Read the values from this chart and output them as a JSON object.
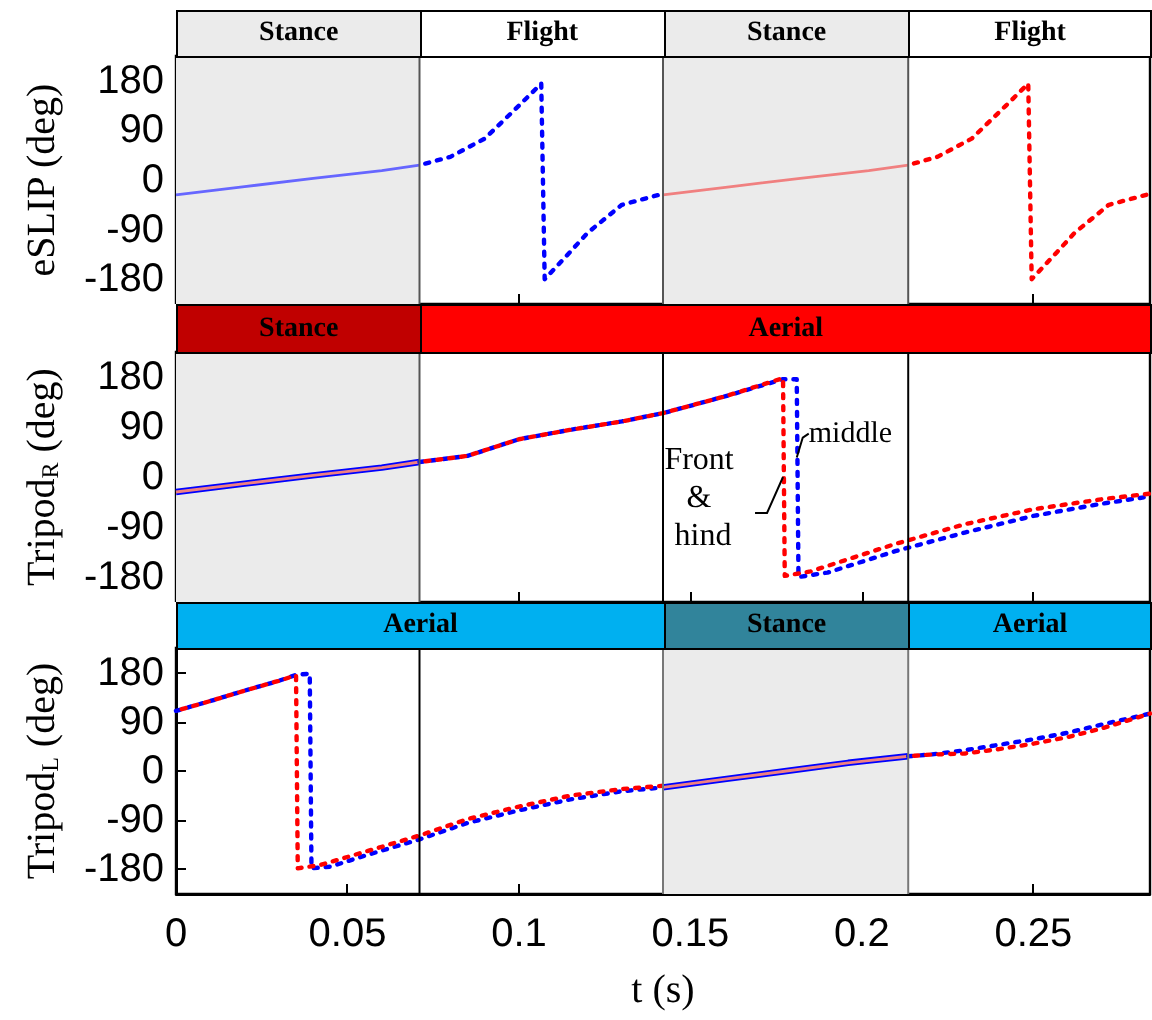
{
  "chart_data": [
    {
      "type": "line",
      "ylabel": "eSLIP (deg)",
      "xlim": [
        0,
        0.284
      ],
      "xticks": [
        0,
        0.05,
        0.1,
        0.15,
        0.2,
        0.25
      ],
      "ylim": [
        -225,
        225
      ],
      "yticks": [
        -180,
        -90,
        0,
        90,
        180
      ],
      "tick_labels": "y",
      "grid": false,
      "bands": [
        {
          "axis": "x",
          "from": 0,
          "to": 0.071,
          "label": "Stance",
          "color": "#ebebeb"
        },
        {
          "axis": "x",
          "from": 0.142,
          "to": 0.2135,
          "label": "Stance",
          "color": "#ebebeb"
        }
      ],
      "annotations": [
        "Flight",
        "Flight"
      ],
      "ref_lines": [
        {
          "axis": "x",
          "value": 0.071,
          "color": "#555555"
        },
        {
          "axis": "x",
          "value": 0.142,
          "color": "#555555"
        },
        {
          "axis": "x",
          "value": 0.2135,
          "color": "#555555"
        }
      ],
      "series": [
        {
          "color": "#6666ff",
          "line_style": "solid",
          "x": [
            0,
            0.02,
            0.04,
            0.06,
            0.071
          ],
          "values": [
            -27,
            -12,
            3,
            17,
            27
          ]
        },
        {
          "color": "#0000ff",
          "line_style": "dotted",
          "x": [
            0.071,
            0.08,
            0.09,
            0.1,
            0.1065,
            0.1075,
            0.115,
            0.12,
            0.13,
            0.142
          ],
          "values": [
            27,
            42,
            75,
            135,
            175,
            -180,
            -130,
            -96,
            -45,
            -25
          ]
        },
        {
          "color": "#f08080",
          "line_style": "solid",
          "x": [
            0.142,
            0.162,
            0.182,
            0.202,
            0.2135
          ],
          "values": [
            -27,
            -12,
            3,
            17,
            27
          ]
        },
        {
          "color": "#ff0000",
          "line_style": "dotted",
          "x": [
            0.2135,
            0.222,
            0.232,
            0.242,
            0.2485,
            0.2495,
            0.257,
            0.262,
            0.272,
            0.284
          ],
          "values": [
            27,
            42,
            75,
            135,
            175,
            -180,
            -130,
            -96,
            -45,
            -25
          ]
        }
      ]
    },
    {
      "type": "line",
      "ylabel": "Tripod$_{R}$ (deg)",
      "xlim": [
        0,
        0.284
      ],
      "xticks": [
        0,
        0.05,
        0.1,
        0.15,
        0.2,
        0.25
      ],
      "ylim": [
        -225,
        225
      ],
      "yticks": [
        -180,
        -90,
        0,
        90,
        180
      ],
      "tick_labels": "y",
      "grid": false,
      "bands": [
        {
          "axis": "x",
          "from": 0,
          "to": 0.071,
          "label": "Stance",
          "color": "#ebebeb"
        }
      ],
      "ref_lines": [
        {
          "axis": "x",
          "value": 0.071,
          "color": "#555555"
        },
        {
          "axis": "x",
          "value": 0.142,
          "color": "#000000"
        },
        {
          "axis": "x",
          "value": 0.2135,
          "color": "#000000"
        }
      ],
      "annotations": [
        "Aerial",
        {
          "text": "Front & hind",
          "x": 0.177,
          "y": 0
        },
        {
          "text": "middle",
          "x": 0.181,
          "y": 35
        }
      ],
      "series": [
        {
          "color": "#0000ff",
          "line_style": "solid",
          "x": [
            0,
            0.02,
            0.04,
            0.06,
            0.071
          ],
          "values": [
            -27,
            -12,
            3,
            17,
            27
          ]
        },
        {
          "color": "#f08080",
          "line_style": "solid",
          "x": [
            0,
            0.02,
            0.04,
            0.06,
            0.071
          ],
          "values": [
            -27,
            -12,
            3,
            17,
            27
          ]
        },
        {
          "color": "#0000ff",
          "line_style": "dotted",
          "x": [
            0.071,
            0.085,
            0.1,
            0.115,
            0.13,
            0.142,
            0.16,
            0.177,
            0.181,
            0.1815,
            0.19,
            0.21,
            0.23,
            0.25,
            0.27,
            0.284
          ],
          "values": [
            27,
            38,
            68,
            85,
            100,
            115,
            145,
            176,
            176,
            -180,
            -172,
            -133,
            -100,
            -70,
            -48,
            -35
          ]
        },
        {
          "color": "#ff0000",
          "line_style": "dotted",
          "x": [
            0.071,
            0.085,
            0.1,
            0.115,
            0.13,
            0.142,
            0.16,
            0.177,
            0.1775,
            0.185,
            0.21,
            0.23,
            0.25,
            0.27,
            0.284
          ],
          "values": [
            27,
            38,
            68,
            85,
            100,
            115,
            145,
            178,
            -178,
            -170,
            -120,
            -85,
            -58,
            -40,
            -30
          ]
        }
      ]
    },
    {
      "type": "line",
      "ylabel": "Tripod$_{L}$ (deg)",
      "xlabel": "t (s)",
      "xlim": [
        0,
        0.284
      ],
      "xticks": [
        0,
        0.05,
        0.1,
        0.15,
        0.2,
        0.25
      ],
      "ylim": [
        -225,
        225
      ],
      "yticks": [
        -180,
        -90,
        0,
        90,
        180
      ],
      "grid": false,
      "bands": [
        {
          "axis": "x",
          "from": 0.142,
          "to": 0.2135,
          "label": "Stance",
          "color": "#ebebeb"
        }
      ],
      "annotations": [
        "Aerial",
        "Aerial"
      ],
      "ref_lines": [
        {
          "axis": "x",
          "value": 0.071,
          "color": "#000000"
        },
        {
          "axis": "x",
          "value": 0.142,
          "color": "#777777"
        },
        {
          "axis": "x",
          "value": 0.2135,
          "color": "#777777"
        }
      ],
      "series": [
        {
          "color": "#0000ff",
          "line_style": "dotted",
          "x": [
            0,
            0.01,
            0.02,
            0.03,
            0.035,
            0.039,
            0.0395,
            0.045,
            0.055,
            0.071,
            0.085,
            0.1,
            0.115,
            0.13,
            0.142
          ],
          "values": [
            110,
            128,
            147,
            165,
            176,
            178,
            -178,
            -175,
            -155,
            -125,
            -95,
            -72,
            -52,
            -37,
            -30
          ]
        },
        {
          "color": "#ff0000",
          "line_style": "dotted",
          "x": [
            0,
            0.01,
            0.02,
            0.03,
            0.035,
            0.0355,
            0.042,
            0.055,
            0.071,
            0.085,
            0.1,
            0.115,
            0.13,
            0.142
          ],
          "values": [
            110,
            128,
            147,
            165,
            175,
            -178,
            -172,
            -148,
            -118,
            -88,
            -65,
            -45,
            -33,
            -27
          ]
        },
        {
          "color": "#0000ff",
          "line_style": "solid",
          "x": [
            0.142,
            0.16,
            0.178,
            0.196,
            0.2135
          ],
          "values": [
            -30,
            -15,
            0,
            15,
            27
          ]
        },
        {
          "color": "#f08080",
          "line_style": "solid",
          "x": [
            0.142,
            0.16,
            0.178,
            0.196,
            0.2135
          ],
          "values": [
            -30,
            -15,
            0,
            15,
            27
          ]
        },
        {
          "color": "#0000ff",
          "line_style": "dotted",
          "x": [
            0.2135,
            0.22,
            0.23,
            0.24,
            0.25,
            0.26,
            0.27,
            0.284
          ],
          "values": [
            27,
            30,
            38,
            48,
            58,
            70,
            85,
            105
          ]
        },
        {
          "color": "#ff0000",
          "line_style": "dotted",
          "x": [
            0.2135,
            0.22,
            0.23,
            0.24,
            0.25,
            0.26,
            0.27,
            0.284
          ],
          "values": [
            27,
            30,
            32,
            40,
            50,
            62,
            78,
            105
          ]
        }
      ]
    }
  ]
}
